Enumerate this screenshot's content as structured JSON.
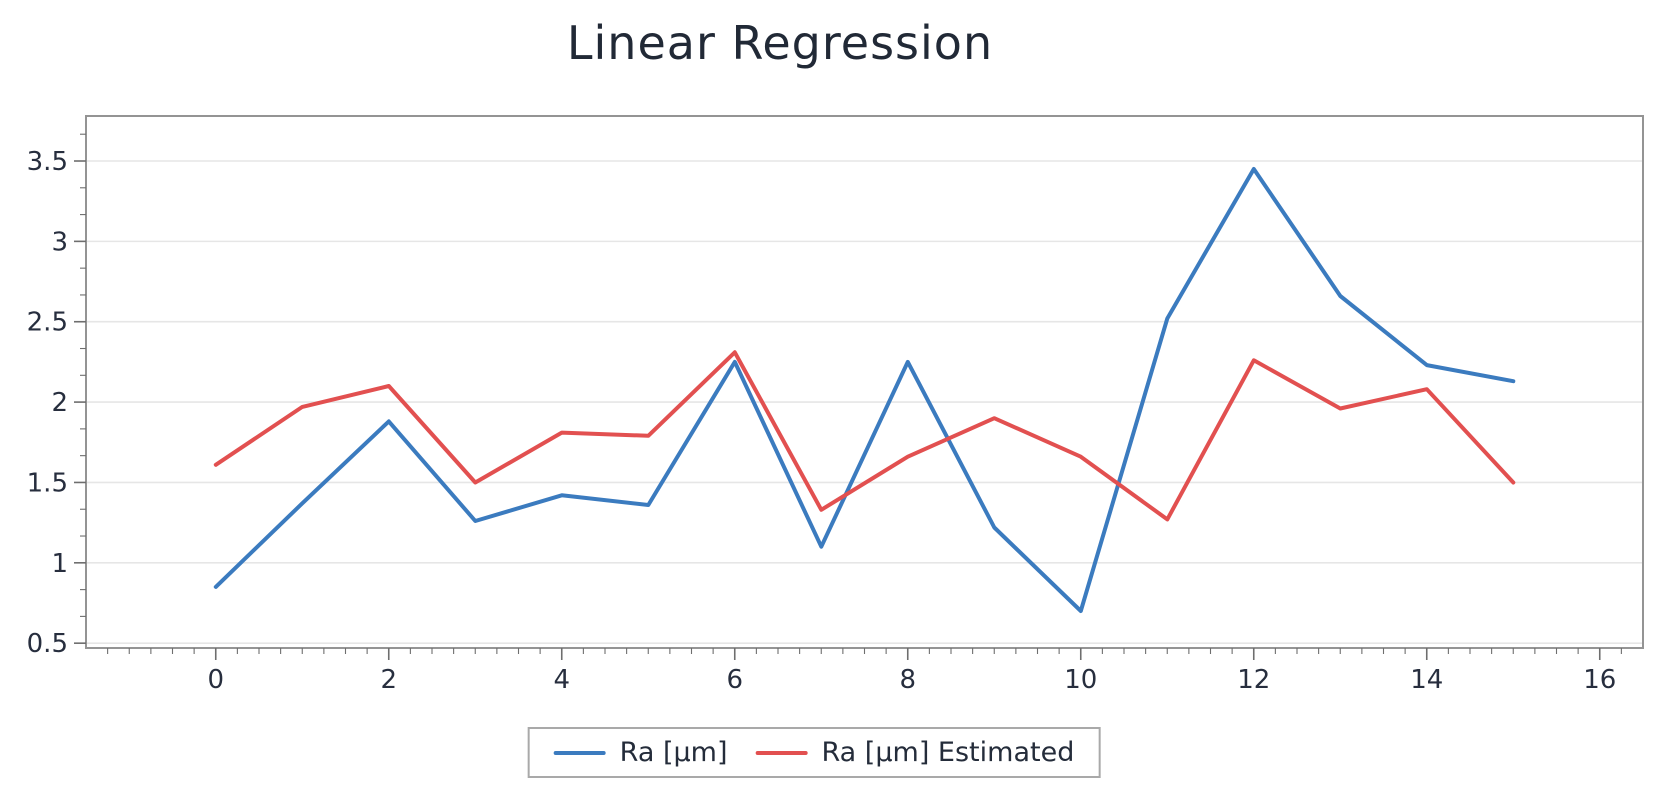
{
  "title": "Linear Regression",
  "legend": {
    "items": [
      {
        "label": "Ra [μm]"
      },
      {
        "label": "Ra [μm] Estimated"
      }
    ]
  },
  "chart_data": {
    "type": "line",
    "title": "Linear Regression",
    "x": [
      0,
      1,
      2,
      3,
      4,
      5,
      6,
      7,
      8,
      9,
      10,
      11,
      12,
      13,
      14,
      15
    ],
    "series": [
      {
        "name": "Ra [μm]",
        "color": "#3b7bbf",
        "values": [
          0.85,
          1.37,
          1.88,
          1.26,
          1.42,
          1.36,
          2.25,
          1.1,
          2.25,
          1.22,
          0.7,
          2.52,
          3.45,
          2.66,
          2.23,
          2.13
        ]
      },
      {
        "name": "Ra [μm] Estimated",
        "color": "#e25050",
        "values": [
          1.61,
          1.97,
          2.1,
          1.5,
          1.81,
          1.79,
          2.31,
          1.33,
          1.66,
          1.9,
          1.66,
          1.27,
          2.26,
          1.96,
          2.08,
          1.5
        ]
      }
    ],
    "xlabel": "",
    "ylabel": "",
    "x_ticks": [
      0,
      2,
      4,
      6,
      8,
      10,
      12,
      14,
      16
    ],
    "y_ticks": [
      0.5,
      1,
      1.5,
      2,
      2.5,
      3,
      3.5
    ],
    "xlim": [
      -1.5,
      16.5
    ],
    "ylim": [
      0.47,
      3.78
    ],
    "grid": "horizontal",
    "legend_position": "bottom-center",
    "colors": {
      "grid": "#e6e6e6",
      "border": "#949494",
      "tick": "#6e6e6e",
      "text": "#272e3e"
    }
  }
}
